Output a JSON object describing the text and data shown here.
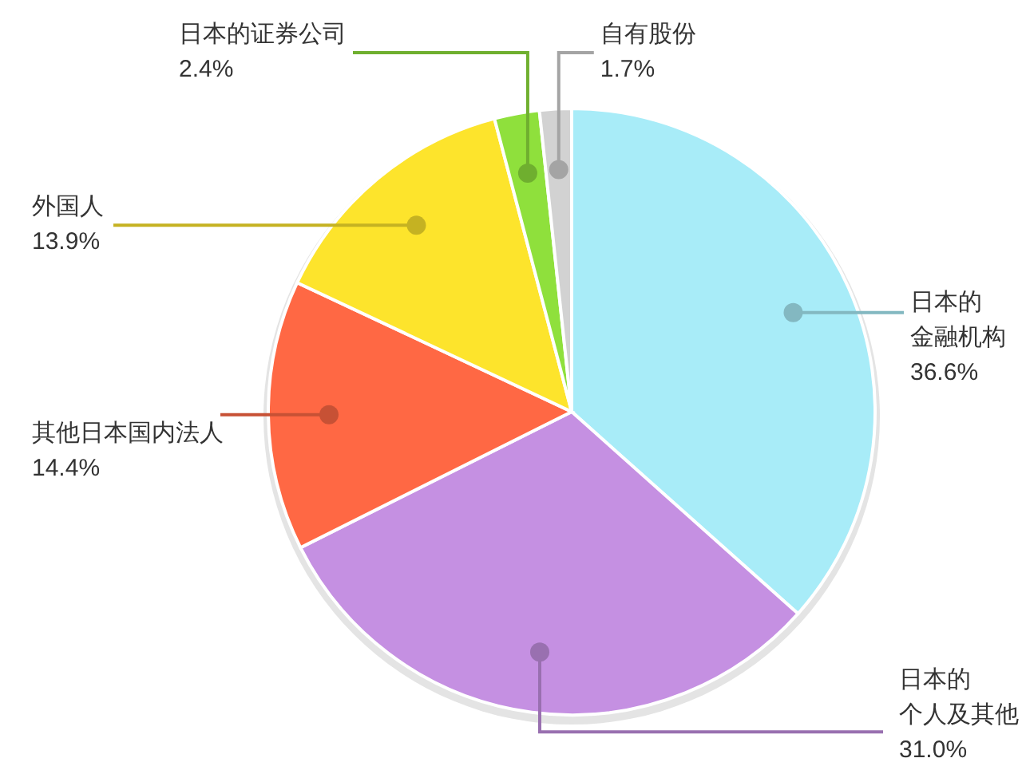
{
  "chart_data": {
    "type": "pie",
    "categories": [
      "日本的金融机构",
      "日本的个人及其他",
      "其他日本国内法人",
      "外国人",
      "日本的证券公司",
      "自有股份"
    ],
    "values": [
      36.6,
      31.0,
      14.4,
      13.9,
      2.4,
      1.7
    ],
    "value_labels": [
      "36.6%",
      "31.0%",
      "14.4%",
      "13.9%",
      "2.4%",
      "1.7%"
    ],
    "colors": [
      "#a8ecf8",
      "#c590e2",
      "#ff6844",
      "#fde42c",
      "#8fe03c",
      "#d2d2d2"
    ]
  }
}
